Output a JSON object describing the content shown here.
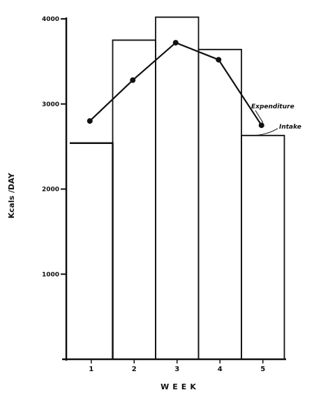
{
  "chart_data": {
    "type": "bar",
    "title": "",
    "xlabel": "WEEK",
    "ylabel": "Kcals /DAY",
    "categories": [
      "1",
      "2",
      "3",
      "4",
      "5"
    ],
    "ylim": [
      0,
      4000
    ],
    "yticks": [
      {
        "value": 1000,
        "label": "1000"
      },
      {
        "value": 2000,
        "label": "2000"
      },
      {
        "value": 3000,
        "label": "3000"
      },
      {
        "value": 4000,
        "label": "4000"
      }
    ],
    "grid": false,
    "series": [
      {
        "name": "Intake",
        "type": "bar",
        "values": [
          2540,
          3750,
          4020,
          3640,
          2630
        ]
      },
      {
        "name": "Expenditure",
        "type": "line",
        "values": [
          2800,
          3280,
          3720,
          3520,
          2750
        ]
      }
    ],
    "annotations": [
      {
        "text": "Expenditure",
        "series": "Expenditure"
      },
      {
        "text": "Intake",
        "series": "Intake"
      }
    ],
    "colors": {
      "ink": "#111111",
      "background": "#ffffff"
    }
  }
}
